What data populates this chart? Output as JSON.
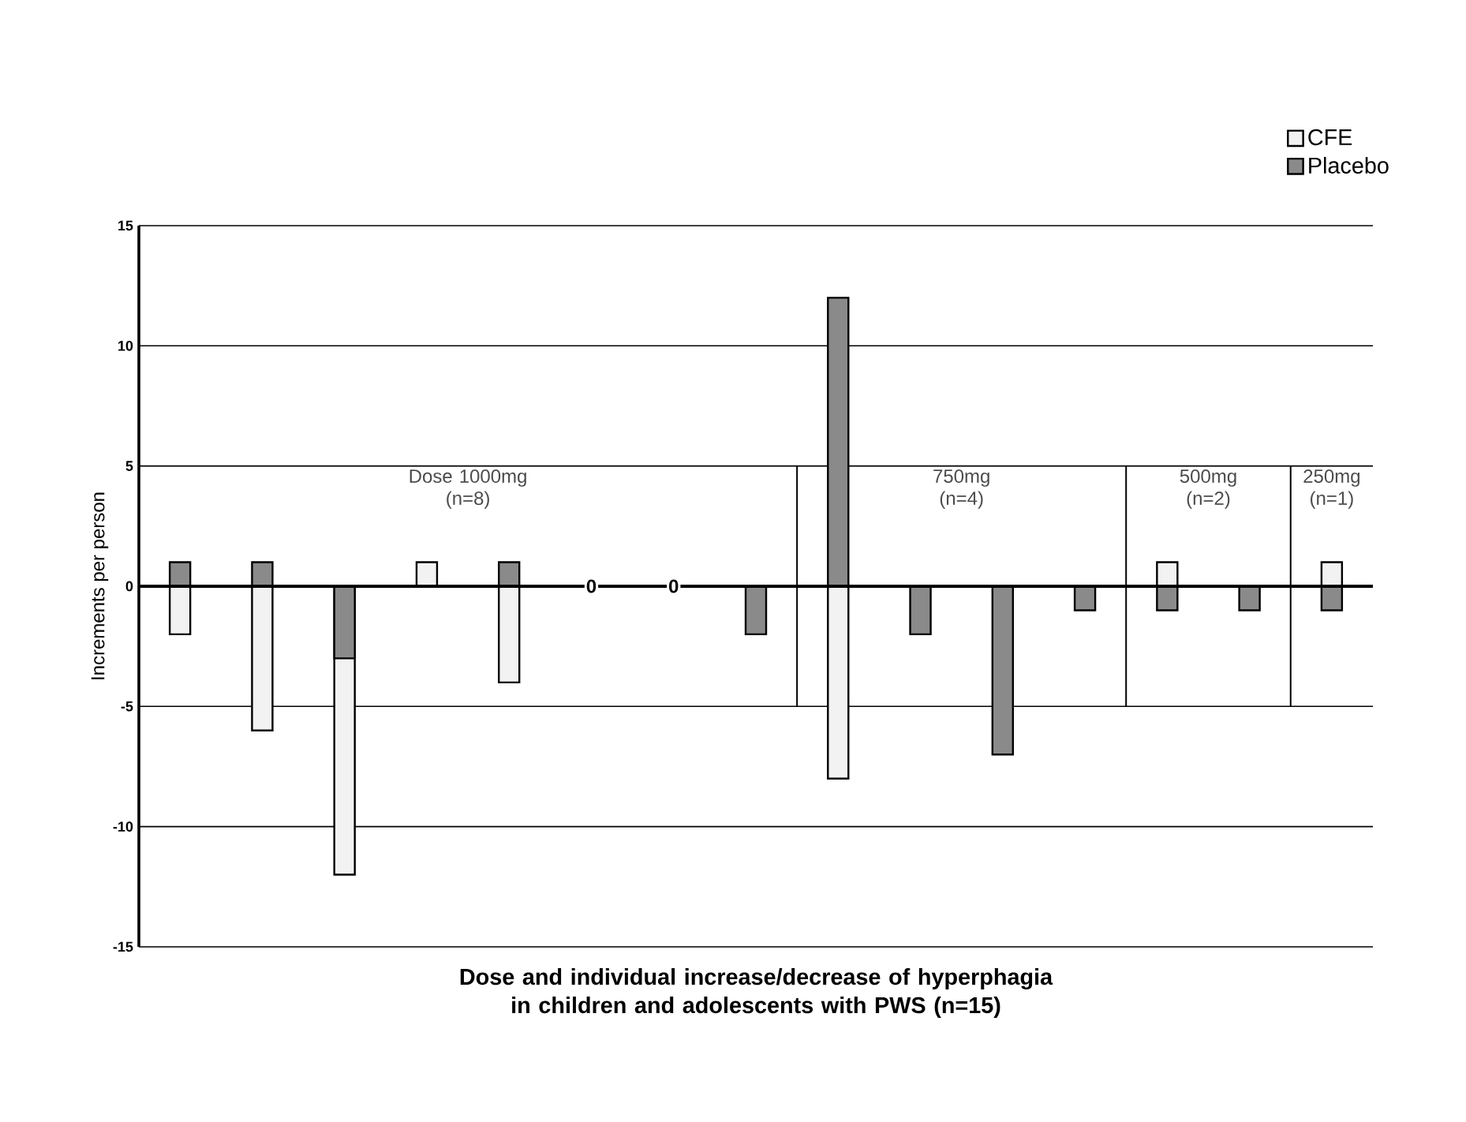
{
  "chart_data": {
    "type": "bar",
    "categories": [
      null,
      null,
      null,
      null,
      null,
      null,
      null,
      null,
      null,
      null,
      null,
      null,
      null,
      null,
      null
    ],
    "series": [
      {
        "name": "CFE",
        "color": "#f2f2f2",
        "values": [
          -2,
          -6,
          -12,
          1,
          -4,
          0,
          0,
          null,
          -8,
          null,
          null,
          null,
          1,
          null,
          1
        ],
        "value_labels": [
          null,
          null,
          null,
          null,
          null,
          "0",
          "0",
          null,
          null,
          null,
          null,
          null,
          null,
          null,
          null
        ]
      },
      {
        "name": "Placebo",
        "color": "#8a8a8a",
        "values": [
          1,
          1,
          -3,
          null,
          1,
          null,
          null,
          -2,
          12,
          -2,
          -7,
          -1,
          -1,
          -1,
          -1
        ]
      }
    ],
    "xlabel": "Dose and individual increase/decrease of hyperphagia in children and adolescents with PWS (n=**15**)",
    "ylabel": "Increments per person",
    "ylim": [
      -15,
      15
    ],
    "yticks": [
      -15,
      -10,
      -5,
      0,
      5,
      10,
      15
    ],
    "grid": "y",
    "legend": "top right",
    "annotations": [
      "Dose 1000mg (n=8)",
      "750mg (n=4)",
      "500mg (n=2)",
      "250mg (n=1)"
    ]
  }
}
